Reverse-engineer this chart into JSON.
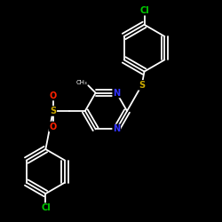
{
  "background": "#000000",
  "atom_colors": {
    "N": "#3333ff",
    "S": "#ccaa00",
    "O": "#ff2200",
    "Cl": "#00cc00"
  },
  "bond_color": "#ffffff",
  "figsize": [
    2.5,
    2.5
  ],
  "dpi": 100
}
